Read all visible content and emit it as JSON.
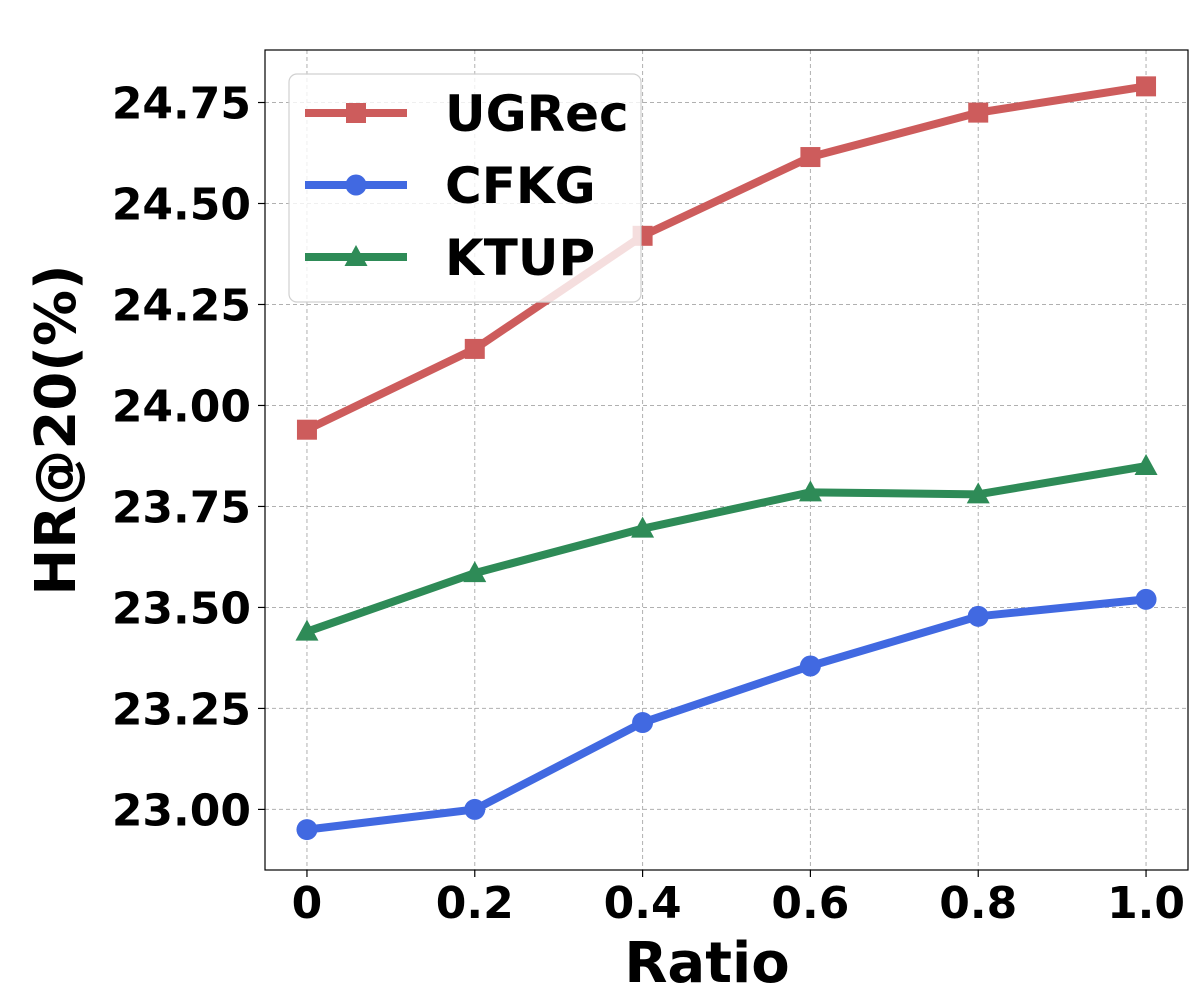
{
  "chart_data": {
    "type": "line",
    "title": "",
    "xlabel": "Ratio",
    "ylabel": "HR@20(%)",
    "x": [
      0,
      0.2,
      0.4,
      0.6,
      0.8,
      1.0
    ],
    "x_tick_labels": [
      "0",
      "0.2",
      "0.4",
      "0.6",
      "0.8",
      "1.0"
    ],
    "yticks": [
      23.0,
      23.25,
      23.5,
      23.75,
      24.0,
      24.25,
      24.5,
      24.75
    ],
    "y_tick_labels": [
      "23.00",
      "23.25",
      "23.50",
      "23.75",
      "24.00",
      "24.25",
      "24.50",
      "24.75"
    ],
    "xlim": [
      -0.05,
      1.05
    ],
    "ylim": [
      22.85,
      24.88
    ],
    "grid": true,
    "legend_position": "top-left",
    "series": [
      {
        "name": "UGRec",
        "color": "#cd5c5c",
        "marker": "square",
        "values": [
          23.94,
          24.14,
          24.42,
          24.615,
          24.725,
          24.79
        ]
      },
      {
        "name": "CFKG",
        "color": "#4169e1",
        "marker": "circle",
        "values": [
          22.95,
          23.0,
          23.215,
          23.355,
          23.478,
          23.52
        ]
      },
      {
        "name": "KTUP",
        "color": "#2e8b57",
        "marker": "triangle",
        "values": [
          23.44,
          23.585,
          23.695,
          23.785,
          23.78,
          23.85
        ]
      }
    ]
  }
}
